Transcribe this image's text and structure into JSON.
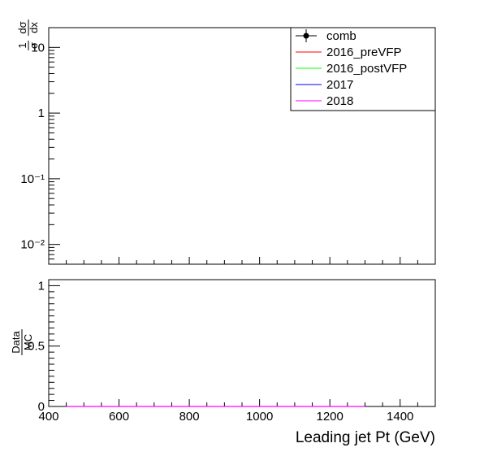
{
  "chart_data": [
    {
      "type": "line",
      "panel": "top",
      "ylabel": "1/σ dσ/dx",
      "yscale": "log",
      "ylim": [
        0.005,
        20
      ],
      "ymajor_ticks": [
        0.01,
        0.1,
        1,
        10
      ],
      "ytick_labels": [
        "10⁻²",
        "10⁻¹",
        "1",
        "10"
      ],
      "xlim": [
        400,
        1500
      ],
      "legend_position": "top-right",
      "legend": [
        {
          "name": "comb",
          "color": "#000000",
          "marker": "point-with-errorbar"
        },
        {
          "name": "2016_preVFP",
          "color": "#ff0000",
          "marker": "line"
        },
        {
          "name": "2016_postVFP",
          "color": "#00ff00",
          "marker": "line"
        },
        {
          "name": "2017",
          "color": "#0000ff",
          "marker": "line"
        },
        {
          "name": "2018",
          "color": "#ff00ff",
          "marker": "line"
        }
      ],
      "series": []
    },
    {
      "type": "line",
      "panel": "ratio",
      "ylabel_num": "Data",
      "ylabel_den": "MC",
      "ylim": [
        0,
        1.05
      ],
      "yticks": [
        0,
        0.5,
        1
      ],
      "ytick_labels": [
        "0",
        "0.5",
        "1"
      ],
      "xlabel": "Leading jet Pt (GeV)",
      "xlim": [
        400,
        1500
      ],
      "xticks": [
        400,
        600,
        800,
        1000,
        1200,
        1400
      ],
      "xtick_labels": [
        "400",
        "600",
        "800",
        "1000",
        "1200",
        "1400"
      ],
      "series": [
        {
          "name": "2018",
          "color": "#ff00ff",
          "x": [
            450,
            1300
          ],
          "y": [
            0,
            0
          ]
        }
      ]
    }
  ]
}
